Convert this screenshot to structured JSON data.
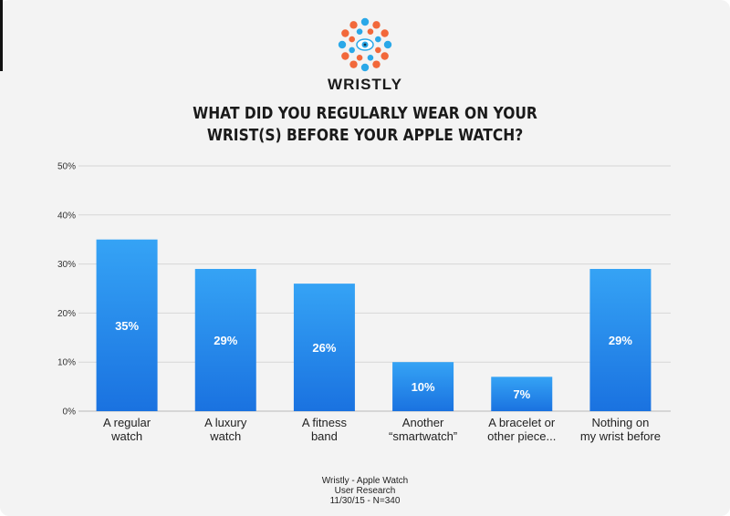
{
  "brand": "WRISTLY",
  "footer": {
    "line1": "Wristly - Apple Watch",
    "line2": "User Research",
    "line3": "11/30/15 - N=340"
  },
  "colors": {
    "bar_top": "#35a3f5",
    "bar_bottom": "#1a72e0",
    "logo_orange": "#f2683a",
    "logo_blue": "#2aa8e8"
  },
  "chart_data": {
    "type": "bar",
    "title": "WHAT DID YOU REGULARLY WEAR ON YOUR WRIST(S) BEFORE YOUR APPLE WATCH?",
    "categories": [
      [
        "A regular",
        "watch"
      ],
      [
        "A luxury",
        "watch"
      ],
      [
        "A fitness",
        "band"
      ],
      [
        "Another",
        "“smartwatch”"
      ],
      [
        "A bracelet or",
        "other piece..."
      ],
      [
        "Nothing on",
        "my wrist before"
      ]
    ],
    "values": [
      35,
      29,
      26,
      10,
      7,
      29
    ],
    "data_labels": [
      "35%",
      "29%",
      "26%",
      "10%",
      "7%",
      "29%"
    ],
    "ylim": [
      0,
      50
    ],
    "yticks": [
      0,
      10,
      20,
      30,
      40,
      50
    ],
    "ytick_labels": [
      "0%",
      "10%",
      "20%",
      "30%",
      "40%",
      "50%"
    ],
    "grid": true,
    "legend": "none"
  }
}
